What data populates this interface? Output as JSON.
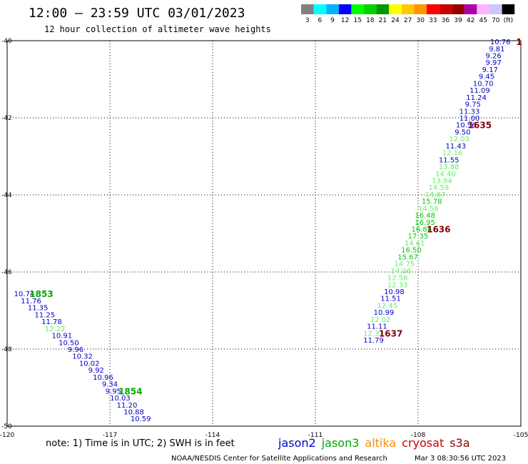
{
  "header": {
    "title": "12:00 – 23:59 UTC 03/01/2023",
    "subtitle": "12 hour collection of altimeter wave heights"
  },
  "colorbar": {
    "colors": [
      "#808080",
      "#00ffff",
      "#00b4ff",
      "#0000ff",
      "#00ff00",
      "#00d200",
      "#009600",
      "#ffff00",
      "#ffc800",
      "#ff9600",
      "#ff0000",
      "#c80000",
      "#960000",
      "#ad00ad",
      "#ffb4ff",
      "#c8c8ff",
      "#000000"
    ],
    "labels": [
      "3",
      "6",
      "9",
      "12",
      "15",
      "18",
      "21",
      "24",
      "27",
      "30",
      "33",
      "36",
      "39",
      "42",
      "45",
      "70",
      "(ft)"
    ]
  },
  "chart_data": {
    "type": "scatter",
    "xlim": [
      -120,
      -105
    ],
    "ylim": [
      -50,
      -40
    ],
    "x_ticks": [
      -120,
      -117,
      -114,
      -111,
      -108,
      -105
    ],
    "y_ticks": [
      -40,
      -42,
      -44,
      -46,
      -48,
      -50
    ],
    "x_tick_labels": [
      "-120",
      "-117",
      "-114",
      "-111",
      "-108",
      "-105"
    ],
    "y_tick_labels": [
      "-40",
      "-42",
      "-44",
      "-46",
      "-48",
      "-50"
    ],
    "grid": true,
    "satellite_colors": {
      "jason2": "#0000cc",
      "jason3": "#00aa00",
      "altika": "#ff8c00",
      "cryosat": "#cc0000",
      "s3a": "#8b0000"
    },
    "series": [
      {
        "x": -105.6,
        "y": -40.02,
        "v": "10.76",
        "sat": "jason3",
        "swh": "low"
      },
      {
        "x": -105.7,
        "y": -40.2,
        "v": "9.81",
        "sat": "jason3",
        "swh": "low"
      },
      {
        "x": -105.8,
        "y": -40.38,
        "v": "9.26",
        "sat": "jason3",
        "swh": "low"
      },
      {
        "x": -105.8,
        "y": -40.56,
        "v": "9.97",
        "sat": "jason3",
        "swh": "low"
      },
      {
        "x": -105.9,
        "y": -40.74,
        "v": "9.17",
        "sat": "jason3",
        "swh": "low"
      },
      {
        "x": -106.0,
        "y": -40.92,
        "v": "9.45",
        "sat": "jason3",
        "swh": "low"
      },
      {
        "x": -106.1,
        "y": -41.1,
        "v": "10.70",
        "sat": "jason3",
        "swh": "low"
      },
      {
        "x": -106.2,
        "y": -41.28,
        "v": "11.09",
        "sat": "jason3",
        "swh": "low"
      },
      {
        "x": -106.3,
        "y": -41.46,
        "v": "11.24",
        "sat": "jason3",
        "swh": "low"
      },
      {
        "x": -106.4,
        "y": -41.64,
        "v": "9.75",
        "sat": "jason3",
        "swh": "low"
      },
      {
        "x": -106.5,
        "y": -41.82,
        "v": "11.33",
        "sat": "jason3",
        "swh": "low"
      },
      {
        "x": -106.5,
        "y": -42.0,
        "v": "11.00",
        "sat": "jason3",
        "swh": "low"
      },
      {
        "x": -106.6,
        "y": -42.18,
        "v": "10.56",
        "sat": "jason3",
        "swh": "low"
      },
      {
        "x": -106.7,
        "y": -42.36,
        "v": "9.50",
        "sat": "jason3",
        "swh": "low"
      },
      {
        "x": -106.8,
        "y": -42.54,
        "v": "12.03",
        "sat": "jason3",
        "swh": "mid"
      },
      {
        "x": -106.9,
        "y": -42.72,
        "v": "11.43",
        "sat": "jason3",
        "swh": "low"
      },
      {
        "x": -107.0,
        "y": -42.9,
        "v": "12.16",
        "sat": "jason3",
        "swh": "mid"
      },
      {
        "x": -107.1,
        "y": -43.08,
        "v": "11.55",
        "sat": "jason3",
        "swh": "low"
      },
      {
        "x": -107.1,
        "y": -43.26,
        "v": "13.88",
        "sat": "jason3",
        "swh": "mid"
      },
      {
        "x": -107.2,
        "y": -43.44,
        "v": "14.40",
        "sat": "jason3",
        "swh": "mid"
      },
      {
        "x": -107.3,
        "y": -43.62,
        "v": "13.94",
        "sat": "jason3",
        "swh": "mid"
      },
      {
        "x": -107.4,
        "y": -43.8,
        "v": "14.59",
        "sat": "jason3",
        "swh": "mid"
      },
      {
        "x": -107.5,
        "y": -43.98,
        "v": "14.87",
        "sat": "jason3",
        "swh": "mid"
      },
      {
        "x": -107.6,
        "y": -44.16,
        "v": "15.78",
        "sat": "jason3",
        "swh": "high"
      },
      {
        "x": -107.7,
        "y": -44.34,
        "v": "14.56",
        "sat": "jason3",
        "swh": "mid"
      },
      {
        "x": -107.8,
        "y": -44.52,
        "v": "16.48",
        "sat": "jason3",
        "swh": "high"
      },
      {
        "x": -107.8,
        "y": -44.7,
        "v": "16.95",
        "sat": "jason3",
        "swh": "high"
      },
      {
        "x": -107.9,
        "y": -44.88,
        "v": "16.86",
        "sat": "jason3",
        "swh": "high"
      },
      {
        "x": -108.0,
        "y": -45.06,
        "v": "17.35",
        "sat": "jason3",
        "swh": "high"
      },
      {
        "x": -108.1,
        "y": -45.24,
        "v": "14.61",
        "sat": "jason3",
        "swh": "mid"
      },
      {
        "x": -108.2,
        "y": -45.42,
        "v": "16.50",
        "sat": "jason3",
        "swh": "high"
      },
      {
        "x": -108.3,
        "y": -45.6,
        "v": "15.67",
        "sat": "jason3",
        "swh": "high"
      },
      {
        "x": -108.4,
        "y": -45.78,
        "v": "14.75",
        "sat": "jason3",
        "swh": "mid"
      },
      {
        "x": -108.5,
        "y": -45.96,
        "v": "14.06",
        "sat": "jason3",
        "swh": "mid"
      },
      {
        "x": -108.6,
        "y": -46.14,
        "v": "12.56",
        "sat": "jason3",
        "swh": "mid"
      },
      {
        "x": -108.6,
        "y": -46.32,
        "v": "12.33",
        "sat": "jason3",
        "swh": "mid"
      },
      {
        "x": -108.7,
        "y": -46.5,
        "v": "10.98",
        "sat": "jason3",
        "swh": "low"
      },
      {
        "x": -108.8,
        "y": -46.68,
        "v": "11.51",
        "sat": "jason3",
        "swh": "low"
      },
      {
        "x": -108.9,
        "y": -46.86,
        "v": "12.45",
        "sat": "jason3",
        "swh": "mid"
      },
      {
        "x": -109.0,
        "y": -47.04,
        "v": "10.99",
        "sat": "jason3",
        "swh": "low"
      },
      {
        "x": -109.1,
        "y": -47.22,
        "v": "12.02",
        "sat": "jason3",
        "swh": "mid"
      },
      {
        "x": -109.2,
        "y": -47.4,
        "v": "11.11",
        "sat": "jason3",
        "swh": "low"
      },
      {
        "x": -109.3,
        "y": -47.58,
        "v": "12.33",
        "sat": "jason3",
        "swh": "mid"
      },
      {
        "x": -109.3,
        "y": -47.76,
        "v": "11.79",
        "sat": "jason3",
        "swh": "low"
      },
      {
        "x": -119.5,
        "y": -46.56,
        "v": "10.74",
        "sat": "jason3",
        "swh": "low"
      },
      {
        "x": -119.3,
        "y": -46.74,
        "v": "11.76",
        "sat": "jason3",
        "swh": "low"
      },
      {
        "x": -119.1,
        "y": -46.92,
        "v": "11.35",
        "sat": "jason3",
        "swh": "low"
      },
      {
        "x": -118.9,
        "y": -47.1,
        "v": "11.25",
        "sat": "jason3",
        "swh": "low"
      },
      {
        "x": -118.7,
        "y": -47.28,
        "v": "11.78",
        "sat": "jason3",
        "swh": "low"
      },
      {
        "x": -118.6,
        "y": -47.46,
        "v": "12.22",
        "sat": "jason3",
        "swh": "mid"
      },
      {
        "x": -118.4,
        "y": -47.64,
        "v": "10.91",
        "sat": "jason3",
        "swh": "low"
      },
      {
        "x": -118.2,
        "y": -47.82,
        "v": "10.50",
        "sat": "jason3",
        "swh": "low"
      },
      {
        "x": -118.0,
        "y": -48.0,
        "v": "9.96",
        "sat": "jason3",
        "swh": "low"
      },
      {
        "x": -117.8,
        "y": -48.18,
        "v": "10.32",
        "sat": "jason3",
        "swh": "low"
      },
      {
        "x": -117.6,
        "y": -48.36,
        "v": "10.02",
        "sat": "jason3",
        "swh": "low"
      },
      {
        "x": -117.4,
        "y": -48.54,
        "v": "9.92",
        "sat": "jason3",
        "swh": "low"
      },
      {
        "x": -117.2,
        "y": -48.72,
        "v": "10.96",
        "sat": "jason3",
        "swh": "low"
      },
      {
        "x": -117.0,
        "y": -48.9,
        "v": "9.34",
        "sat": "jason3",
        "swh": "low"
      },
      {
        "x": -116.9,
        "y": -49.08,
        "v": "9.95",
        "sat": "jason3",
        "swh": "low"
      },
      {
        "x": -116.7,
        "y": -49.26,
        "v": "10.03",
        "sat": "jason3",
        "swh": "low"
      },
      {
        "x": -116.5,
        "y": -49.44,
        "v": "11.20",
        "sat": "jason3",
        "swh": "low"
      },
      {
        "x": -116.3,
        "y": -49.62,
        "v": "10.88",
        "sat": "jason3",
        "swh": "low"
      },
      {
        "x": -116.1,
        "y": -49.8,
        "v": "10.59",
        "sat": "jason3",
        "swh": "low"
      }
    ],
    "swh_colors": {
      "low": "#0000cc",
      "mid": "#66ee66",
      "high": "#00cc00"
    },
    "time_labels": [
      {
        "text": "1635",
        "x": -106.2,
        "y": -42.18,
        "sat": "s3a"
      },
      {
        "text": "1636",
        "x": -107.4,
        "y": -44.88,
        "sat": "s3a"
      },
      {
        "text": "1637",
        "x": -108.8,
        "y": -47.58,
        "sat": "s3a"
      },
      {
        "text": "1",
        "x": -105.05,
        "y": -40.02,
        "sat": "s3a"
      },
      {
        "text": "1853",
        "x": -119.0,
        "y": -46.56,
        "sat": "jason3"
      },
      {
        "text": "1854",
        "x": -116.4,
        "y": -49.08,
        "sat": "jason3"
      }
    ]
  },
  "note": "note: 1) Time is in UTC; 2) SWH is in feet",
  "legend": [
    {
      "name": "jason2",
      "color": "#0000cc"
    },
    {
      "name": "jason3",
      "color": "#00aa00"
    },
    {
      "name": "altika",
      "color": "#ff8c00"
    },
    {
      "name": "cryosat",
      "color": "#cc0000"
    },
    {
      "name": "s3a",
      "color": "#8b0000"
    }
  ],
  "footer": {
    "source": "NOAA/NESDIS Center for Satellite Applications and Research",
    "timestamp": "Mar  3 08:30:56 UTC 2023"
  }
}
